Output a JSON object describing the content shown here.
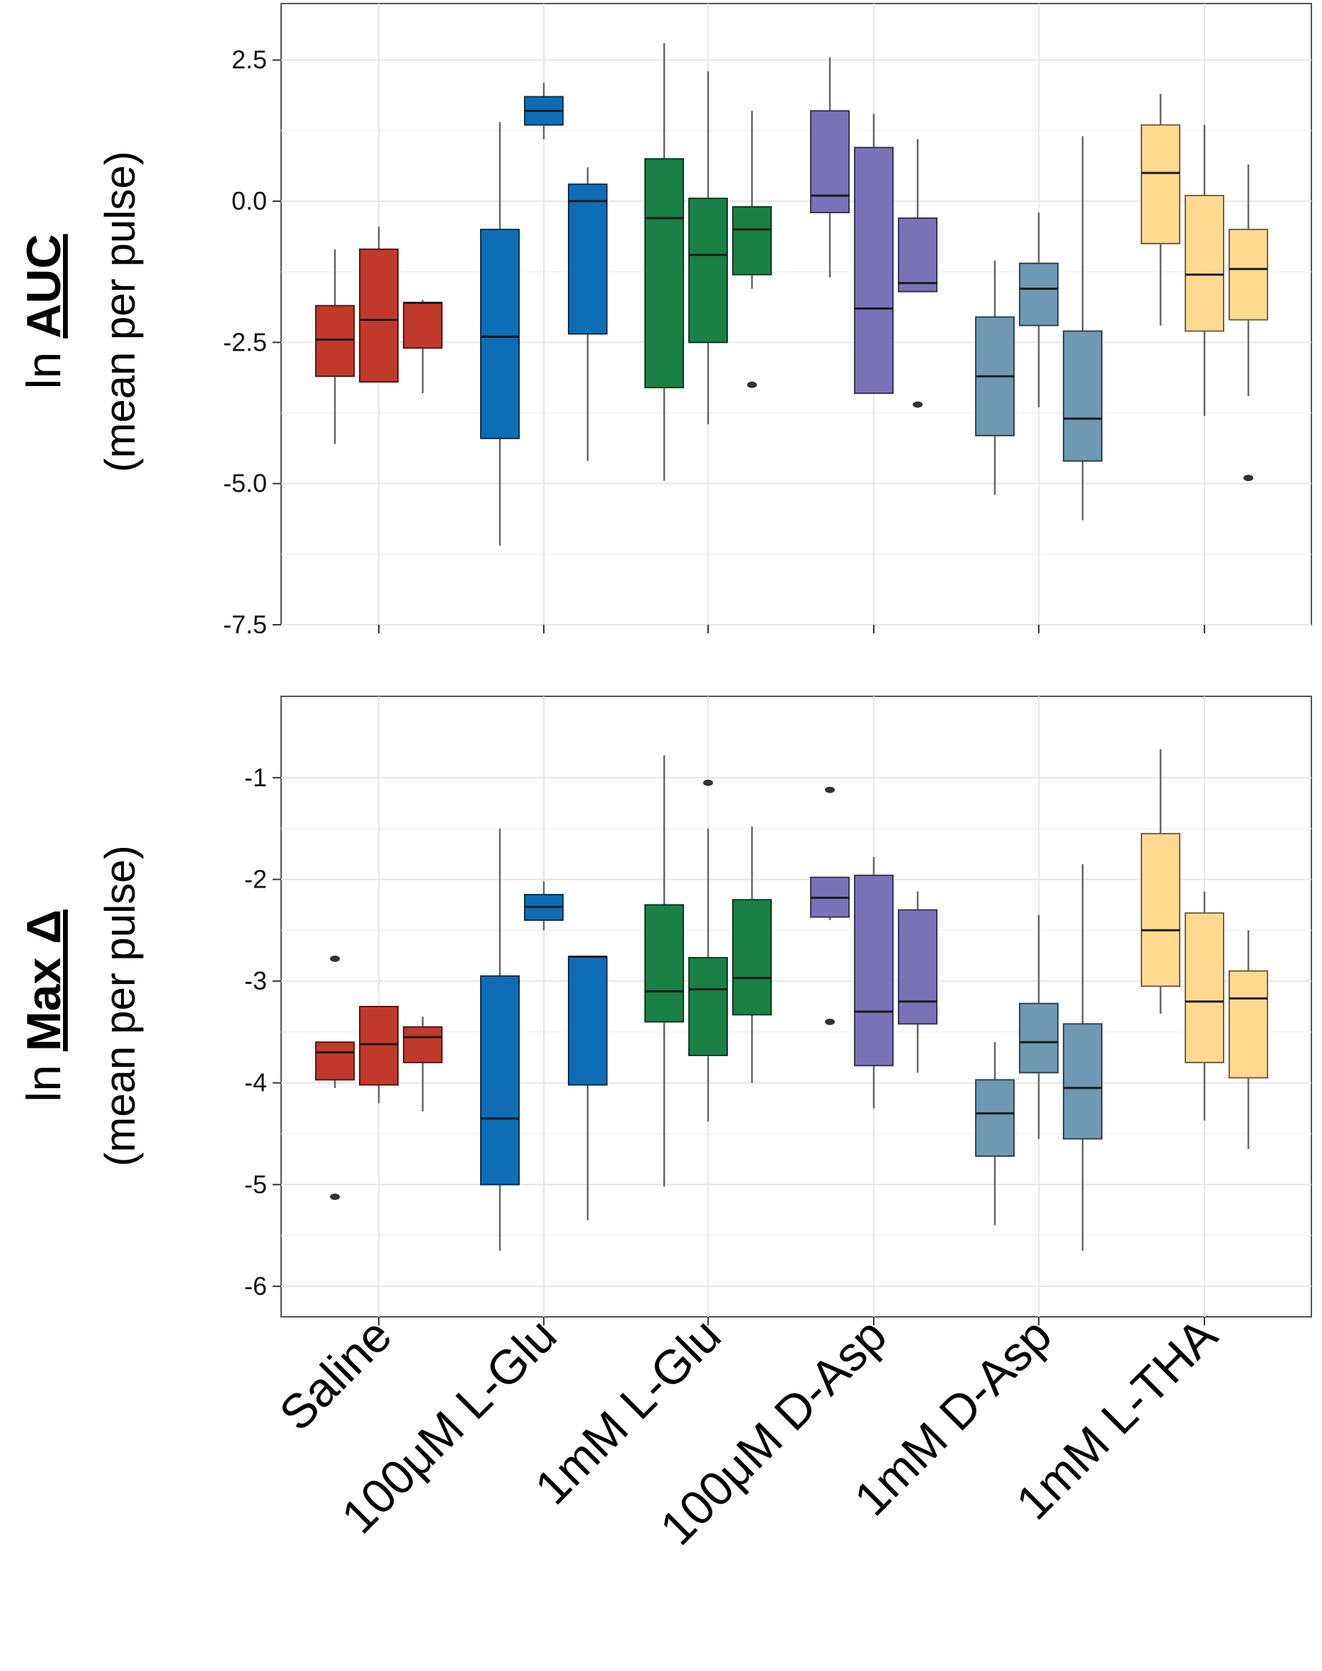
{
  "chart_data": [
    {
      "type": "box",
      "ylabel_prefix": "ln",
      "ylabel_metric": "AUC",
      "ylabel_sub": "(mean per pulse)",
      "ylim": [
        -7.5,
        3.5
      ],
      "yticks": [
        2.5,
        0.0,
        -2.5,
        -5.0,
        -7.5
      ],
      "ytick_labels": [
        "2.5",
        "0.0",
        "-2.5",
        "-5.0",
        "-7.5"
      ],
      "categories": [
        "Saline",
        "100μM L-Glu",
        "1mM L-Glu",
        "100μM D-Asp",
        "1mM D-Asp",
        "1mM L-THA"
      ],
      "groups": [
        {
          "category": "Saline",
          "color": "#C0392B",
          "boxes": [
            {
              "min": -4.3,
              "q1": -3.1,
              "median": -2.45,
              "q3": -1.85,
              "max": -0.85,
              "outliers": []
            },
            {
              "min": -3.2,
              "q1": -3.2,
              "median": -2.1,
              "q3": -0.85,
              "max": -0.45,
              "outliers": []
            },
            {
              "min": -3.4,
              "q1": -2.6,
              "median": -1.8,
              "q3": -1.8,
              "max": -1.75,
              "outliers": []
            }
          ]
        },
        {
          "category": "100μM L-Glu",
          "color": "#0F6DB5",
          "boxes": [
            {
              "min": -6.1,
              "q1": -4.2,
              "median": -2.4,
              "q3": -0.5,
              "max": 1.4,
              "outliers": []
            },
            {
              "min": 1.1,
              "q1": 1.35,
              "median": 1.6,
              "q3": 1.85,
              "max": 2.1,
              "outliers": []
            },
            {
              "min": -4.6,
              "q1": -2.35,
              "median": 0.0,
              "q3": 0.3,
              "max": 0.6,
              "outliers": []
            }
          ]
        },
        {
          "category": "1mM L-Glu",
          "color": "#1A8045",
          "boxes": [
            {
              "min": -4.95,
              "q1": -3.3,
              "median": -0.3,
              "q3": 0.75,
              "max": 2.8,
              "outliers": []
            },
            {
              "min": -3.95,
              "q1": -2.5,
              "median": -0.95,
              "q3": 0.05,
              "max": 2.3,
              "outliers": []
            },
            {
              "min": -1.55,
              "q1": -1.3,
              "median": -0.5,
              "q3": -0.1,
              "max": 1.6,
              "outliers": [
                -3.25
              ]
            }
          ]
        },
        {
          "category": "100μM D-Asp",
          "color": "#7B72B8",
          "boxes": [
            {
              "min": -1.35,
              "q1": -0.2,
              "median": 0.1,
              "q3": 1.6,
              "max": 2.55,
              "outliers": []
            },
            {
              "min": -3.4,
              "q1": -3.4,
              "median": -1.9,
              "q3": 0.95,
              "max": 1.55,
              "outliers": []
            },
            {
              "min": -1.6,
              "q1": -1.6,
              "median": -1.45,
              "q3": -0.3,
              "max": 1.1,
              "outliers": [
                -3.6
              ]
            }
          ]
        },
        {
          "category": "1mM D-Asp",
          "color": "#6F98B2",
          "boxes": [
            {
              "min": -5.2,
              "q1": -4.15,
              "median": -3.1,
              "q3": -2.05,
              "max": -1.05,
              "outliers": []
            },
            {
              "min": -3.65,
              "q1": -2.2,
              "median": -1.55,
              "q3": -1.1,
              "max": -0.2,
              "outliers": []
            },
            {
              "min": -5.65,
              "q1": -4.6,
              "median": -3.85,
              "q3": -2.3,
              "max": 1.15,
              "outliers": []
            }
          ]
        },
        {
          "category": "1mM L-THA",
          "color": "#FFD98F",
          "boxes": [
            {
              "min": -2.2,
              "q1": -0.75,
              "median": 0.5,
              "q3": 1.35,
              "max": 1.9,
              "outliers": []
            },
            {
              "min": -3.8,
              "q1": -2.3,
              "median": -1.3,
              "q3": 0.1,
              "max": 1.35,
              "outliers": []
            },
            {
              "min": -3.45,
              "q1": -2.1,
              "median": -1.2,
              "q3": -0.5,
              "max": 0.65,
              "outliers": [
                -4.9
              ]
            }
          ]
        }
      ]
    },
    {
      "type": "box",
      "ylabel_prefix": "ln",
      "ylabel_metric": "Max Δ",
      "ylabel_sub": "(mean per pulse)",
      "ylim": [
        -6.3,
        -0.2
      ],
      "yticks": [
        -1,
        -2,
        -3,
        -4,
        -5,
        -6
      ],
      "ytick_labels": [
        "-1",
        "-2",
        "-3",
        "-4",
        "-5",
        "-6"
      ],
      "categories": [
        "Saline",
        "100μM L-Glu",
        "1mM L-Glu",
        "100μM D-Asp",
        "1mM D-Asp",
        "1mM L-THA"
      ],
      "groups": [
        {
          "category": "Saline",
          "color": "#C0392B",
          "boxes": [
            {
              "min": -4.05,
              "q1": -3.97,
              "median": -3.7,
              "q3": -3.6,
              "max": -3.6,
              "outliers": [
                -2.78,
                -5.12
              ]
            },
            {
              "min": -4.2,
              "q1": -4.02,
              "median": -3.62,
              "q3": -3.25,
              "max": -3.25,
              "outliers": []
            },
            {
              "min": -4.28,
              "q1": -3.8,
              "median": -3.55,
              "q3": -3.45,
              "max": -3.35,
              "outliers": []
            }
          ]
        },
        {
          "category": "100μM L-Glu",
          "color": "#0F6DB5",
          "boxes": [
            {
              "min": -5.65,
              "q1": -5.0,
              "median": -4.35,
              "q3": -2.95,
              "max": -1.5,
              "outliers": []
            },
            {
              "min": -2.5,
              "q1": -2.4,
              "median": -2.27,
              "q3": -2.15,
              "max": -2.02,
              "outliers": []
            },
            {
              "min": -5.35,
              "q1": -4.02,
              "median": -2.76,
              "q3": -2.76,
              "max": -2.76,
              "outliers": []
            }
          ]
        },
        {
          "category": "1mM L-Glu",
          "color": "#1A8045",
          "boxes": [
            {
              "min": -5.02,
              "q1": -3.4,
              "median": -3.1,
              "q3": -2.25,
              "max": -0.78,
              "outliers": []
            },
            {
              "min": -4.38,
              "q1": -3.73,
              "median": -3.08,
              "q3": -2.77,
              "max": -1.5,
              "outliers": [
                -1.05
              ]
            },
            {
              "min": -4.0,
              "q1": -3.33,
              "median": -2.97,
              "q3": -2.2,
              "max": -1.48,
              "outliers": []
            }
          ]
        },
        {
          "category": "100μM D-Asp",
          "color": "#7B72B8",
          "boxes": [
            {
              "min": -2.4,
              "q1": -2.37,
              "median": -2.18,
              "q3": -1.98,
              "max": -1.98,
              "outliers": [
                -1.12,
                -3.4
              ]
            },
            {
              "min": -4.25,
              "q1": -3.83,
              "median": -3.3,
              "q3": -1.96,
              "max": -1.78,
              "outliers": []
            },
            {
              "min": -3.9,
              "q1": -3.42,
              "median": -3.2,
              "q3": -2.3,
              "max": -2.12,
              "outliers": []
            }
          ]
        },
        {
          "category": "1mM D-Asp",
          "color": "#6F98B2",
          "boxes": [
            {
              "min": -5.4,
              "q1": -4.72,
              "median": -4.3,
              "q3": -3.97,
              "max": -3.6,
              "outliers": []
            },
            {
              "min": -4.55,
              "q1": -3.9,
              "median": -3.6,
              "q3": -3.22,
              "max": -2.35,
              "outliers": []
            },
            {
              "min": -5.65,
              "q1": -4.55,
              "median": -4.05,
              "q3": -3.42,
              "max": -1.85,
              "outliers": []
            }
          ]
        },
        {
          "category": "1mM L-THA",
          "color": "#FFD98F",
          "boxes": [
            {
              "min": -3.32,
              "q1": -3.05,
              "median": -2.5,
              "q3": -1.55,
              "max": -0.72,
              "outliers": []
            },
            {
              "min": -4.37,
              "q1": -3.8,
              "median": -3.2,
              "q3": -2.33,
              "max": -2.12,
              "outliers": []
            },
            {
              "min": -4.65,
              "q1": -3.95,
              "median": -3.17,
              "q3": -2.9,
              "max": -2.5,
              "outliers": []
            }
          ]
        }
      ]
    }
  ]
}
